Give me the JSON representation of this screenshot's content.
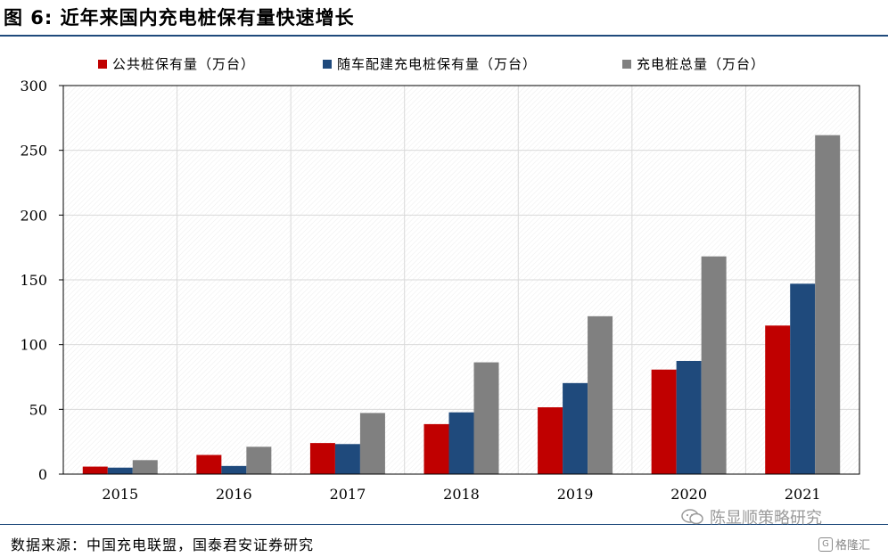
{
  "header": {
    "title": "图 6:  近年来国内充电桩保有量快速增长"
  },
  "chart_data": {
    "type": "bar",
    "categories": [
      "2015",
      "2016",
      "2017",
      "2018",
      "2019",
      "2020",
      "2021"
    ],
    "series": [
      {
        "name": "公共桩保有量（万台）",
        "color": "#c00000",
        "values": [
          5.8,
          14.8,
          24.0,
          38.6,
          51.6,
          80.7,
          114.7
        ]
      },
      {
        "name": "随车配建充电桩保有量（万台）",
        "color": "#1f4a7c",
        "values": [
          5.0,
          6.3,
          23.2,
          47.7,
          70.3,
          87.4,
          147.0
        ]
      },
      {
        "name": "充电桩总量（万台）",
        "color": "#808080",
        "values": [
          10.8,
          21.1,
          47.2,
          86.3,
          121.9,
          168.1,
          261.7
        ]
      }
    ],
    "yticks": [
      0,
      50,
      100,
      150,
      200,
      250,
      300
    ],
    "ylim": [
      0,
      300
    ],
    "grid": true,
    "legend_position": "top"
  },
  "footer": {
    "source": "数据来源：中国充电联盟，国泰君安证券研究",
    "watermark": "陈显顺策略研究",
    "logo": "格隆汇",
    "logo_letter": "G"
  }
}
